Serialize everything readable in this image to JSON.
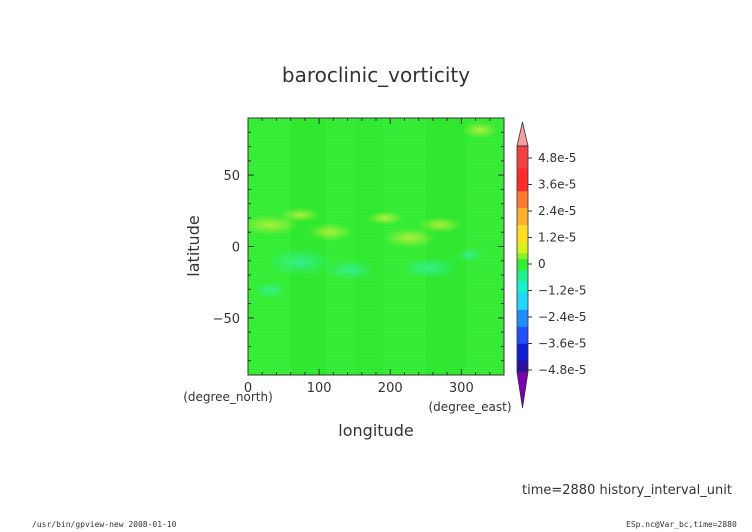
{
  "chart_data": {
    "type": "heatmap",
    "title": "baroclinic_vorticity",
    "xlabel": "longitude",
    "ylabel": "latitude",
    "x_unit": "(degree_east)",
    "y_unit": "(degree_north)",
    "xlim": [
      0,
      360
    ],
    "ylim": [
      -90,
      90
    ],
    "x_ticks": [
      "0",
      "100",
      "200",
      "300"
    ],
    "x_tick_values": [
      0,
      100,
      200,
      300
    ],
    "y_ticks": [
      "50",
      "0",
      "−50"
    ],
    "y_tick_values": [
      50,
      0,
      -50
    ],
    "colorbar": {
      "labels": [
        "4.8e-5",
        "3.6e-5",
        "2.4e-5",
        "1.2e-5",
        "0",
        "−1.2e-5",
        "−2.4e-5",
        "−3.6e-5",
        "−4.8e-5"
      ],
      "values": [
        4.8e-05,
        3.6e-05,
        2.4e-05,
        1.2e-05,
        0,
        -1.2e-05,
        -2.4e-05,
        -3.6e-05,
        -4.8e-05
      ],
      "over_color": "#f5a0a0",
      "under_color": "#7a00b0"
    },
    "field_dominant_color": "#33ee33"
  },
  "footer": {
    "time_label": "time=2880  history_interval_unit",
    "left_note": "/usr/bin/gpview-new  2008-01-10",
    "right_note": "ESp.nc@Var_bc,time=2880"
  }
}
